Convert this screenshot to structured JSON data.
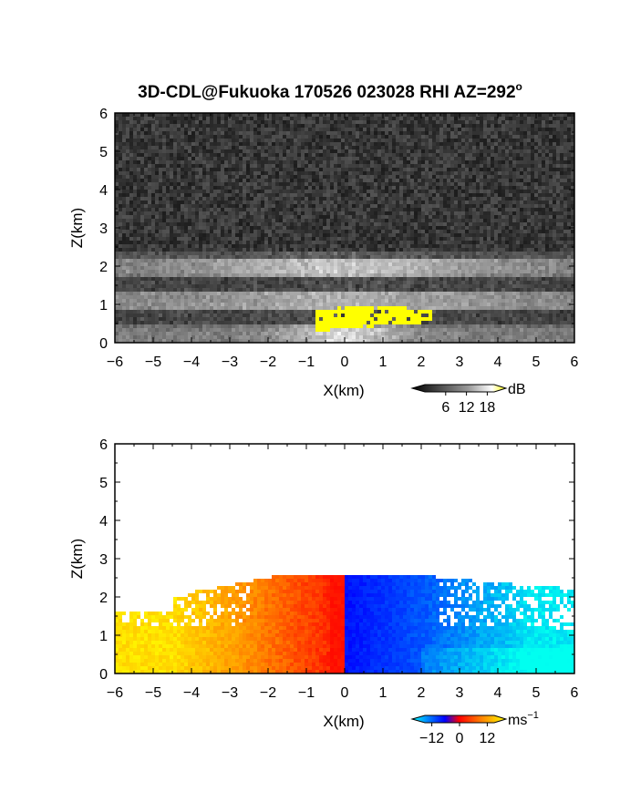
{
  "title": {
    "prefix": "3D-CDL@Fukuoka 170526 023028 RHI AZ=292",
    "superscript": "o"
  },
  "chart_data": [
    {
      "type": "heatmap",
      "quantity": "backscatter",
      "xlabel": "X(km)",
      "ylabel": "Z(km)",
      "xlim": [
        -6,
        6
      ],
      "ylim": [
        0,
        6
      ],
      "xticks": [
        "−6",
        "−5",
        "−4",
        "−3",
        "−2",
        "−1",
        "0",
        "1",
        "2",
        "3",
        "4",
        "5",
        "6"
      ],
      "yticks": [
        "0",
        "1",
        "2",
        "3",
        "4",
        "5",
        "6"
      ],
      "colorbar": {
        "unit": "dB",
        "ticks": [
          "6",
          "12",
          "18"
        ],
        "tick_values": [
          6,
          12,
          18
        ],
        "range": [
          0,
          20
        ],
        "colors": [
          "#000000",
          "#ffffff",
          "#ffff00"
        ]
      },
      "features": {
        "noise_floor_top_km": 2.4,
        "bright_layers_km": [
          [
            1.7,
            2.2
          ],
          [
            0.9,
            1.3
          ],
          [
            0.0,
            0.5
          ]
        ],
        "yellow_region": {
          "x_km": [
            -0.8,
            2.3
          ],
          "z_km": [
            0.3,
            0.95
          ]
        }
      }
    },
    {
      "type": "heatmap",
      "quantity": "radial velocity",
      "xlabel": "X(km)",
      "ylabel": "Z(km)",
      "xlim": [
        -6,
        6
      ],
      "ylim": [
        0,
        6
      ],
      "xticks": [
        "−6",
        "−5",
        "−4",
        "−3",
        "−2",
        "−1",
        "0",
        "1",
        "2",
        "3",
        "4",
        "5",
        "6"
      ],
      "yticks": [
        "0",
        "1",
        "2",
        "3",
        "4",
        "5",
        "6"
      ],
      "colorbar": {
        "unit": "ms",
        "unit_superscript": "−1",
        "ticks": [
          "−12",
          "0",
          "12"
        ],
        "tick_values": [
          -12,
          0,
          12
        ],
        "range": [
          -15,
          15
        ],
        "colors": [
          "#00ffff",
          "#0000ff",
          "#ff0000",
          "#ffff00"
        ]
      },
      "features": {
        "data_top_km": 2.6,
        "left_side_sign": "positive",
        "right_side_sign": "negative"
      }
    }
  ]
}
